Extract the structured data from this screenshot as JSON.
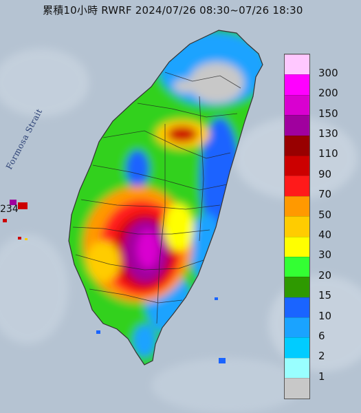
{
  "title": "累積10小時 RWRF 2024/07/26 08:30~07/26 18:30",
  "strait_label": "Formosa Strait",
  "buoy_value": "234",
  "legend": [
    {
      "value": "300",
      "color": "#ffc8ff"
    },
    {
      "value": "200",
      "color": "#ff00ff"
    },
    {
      "value": "150",
      "color": "#d900d0"
    },
    {
      "value": "130",
      "color": "#a0009e"
    },
    {
      "value": "110",
      "color": "#980000"
    },
    {
      "value": "90",
      "color": "#cc0000"
    },
    {
      "value": "70",
      "color": "#ff1a1a"
    },
    {
      "value": "50",
      "color": "#ff9900"
    },
    {
      "value": "40",
      "color": "#ffcc00"
    },
    {
      "value": "30",
      "color": "#ffff00"
    },
    {
      "value": "20",
      "color": "#33ff33"
    },
    {
      "value": "15",
      "color": "#2e9900"
    },
    {
      "value": "10",
      "color": "#1a64ff"
    },
    {
      "value": "6",
      "color": "#1aa3ff"
    },
    {
      "value": "2",
      "color": "#00ccff"
    },
    {
      "value": "1",
      "color": "#99ffff"
    },
    {
      "value": "",
      "color": "#c8c8c8"
    }
  ]
}
